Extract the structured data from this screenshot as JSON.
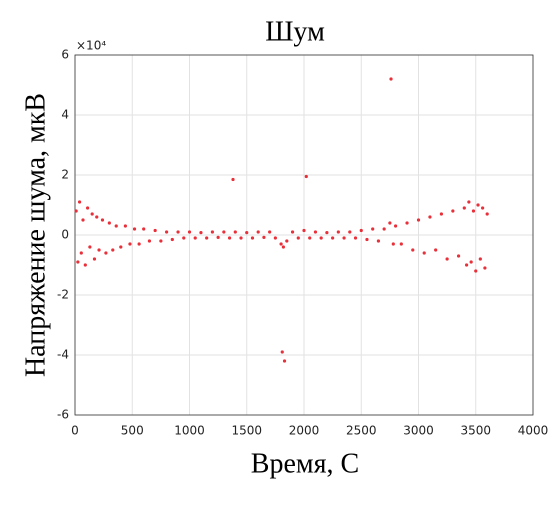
{
  "chart_data": {
    "type": "scatter",
    "title": "Шум",
    "x_label": "Время, С",
    "y_label": "Напряжение шума, мкВ",
    "y_exponent_label": "×10⁴",
    "xlim": [
      0,
      4000
    ],
    "xticks": [
      0,
      500,
      1000,
      1500,
      2000,
      2500,
      3000,
      3500,
      4000
    ],
    "ylim": [
      -6,
      6
    ],
    "yticks": [
      -6,
      -4,
      -2,
      0,
      2,
      4,
      6
    ],
    "grid": true,
    "series": [
      {
        "color": "#e8303a",
        "x": [
          10,
          25,
          40,
          55,
          70,
          90,
          110,
          130,
          150,
          170,
          190,
          210,
          240,
          270,
          300,
          330,
          360,
          400,
          440,
          480,
          520,
          560,
          600,
          650,
          700,
          750,
          800,
          850,
          900,
          950,
          1000,
          1050,
          1100,
          1150,
          1200,
          1250,
          1300,
          1350,
          1380,
          1400,
          1450,
          1500,
          1550,
          1600,
          1650,
          1700,
          1750,
          1800,
          1810,
          1820,
          1830,
          1850,
          1900,
          1950,
          2000,
          2020,
          2050,
          2100,
          2150,
          2200,
          2250,
          2300,
          2350,
          2400,
          2450,
          2500,
          2550,
          2600,
          2650,
          2700,
          2750,
          2760,
          2780,
          2800,
          2850,
          2900,
          2950,
          3000,
          3050,
          3100,
          3150,
          3200,
          3250,
          3300,
          3350,
          3400,
          3420,
          3440,
          3460,
          3480,
          3500,
          3520,
          3540,
          3560,
          3580,
          3600
        ],
        "values": [
          0.8,
          -0.9,
          1.1,
          -0.6,
          0.5,
          -1.0,
          0.9,
          -0.4,
          0.7,
          -0.8,
          0.6,
          -0.5,
          0.5,
          -0.6,
          0.4,
          -0.5,
          0.3,
          -0.4,
          0.3,
          -0.3,
          0.2,
          -0.3,
          0.2,
          -0.2,
          0.15,
          -0.2,
          0.1,
          -0.15,
          0.1,
          -0.1,
          0.1,
          -0.1,
          0.08,
          -0.1,
          0.1,
          -0.08,
          0.1,
          -0.1,
          1.85,
          0.1,
          -0.1,
          0.08,
          -0.1,
          0.1,
          -0.08,
          0.1,
          -0.1,
          -0.3,
          -3.9,
          -0.4,
          -4.2,
          -0.2,
          0.1,
          -0.1,
          0.15,
          1.95,
          -0.1,
          0.1,
          -0.1,
          0.08,
          -0.1,
          0.1,
          -0.1,
          0.1,
          -0.1,
          0.15,
          -0.15,
          0.2,
          -0.2,
          0.2,
          0.4,
          5.2,
          -0.3,
          0.3,
          -0.3,
          0.4,
          -0.5,
          0.5,
          -0.6,
          0.6,
          -0.5,
          0.7,
          -0.8,
          0.8,
          -0.7,
          0.9,
          -1.0,
          1.1,
          -0.9,
          0.8,
          -1.2,
          1.0,
          -0.8,
          0.9,
          -1.1,
          0.7
        ]
      }
    ]
  }
}
